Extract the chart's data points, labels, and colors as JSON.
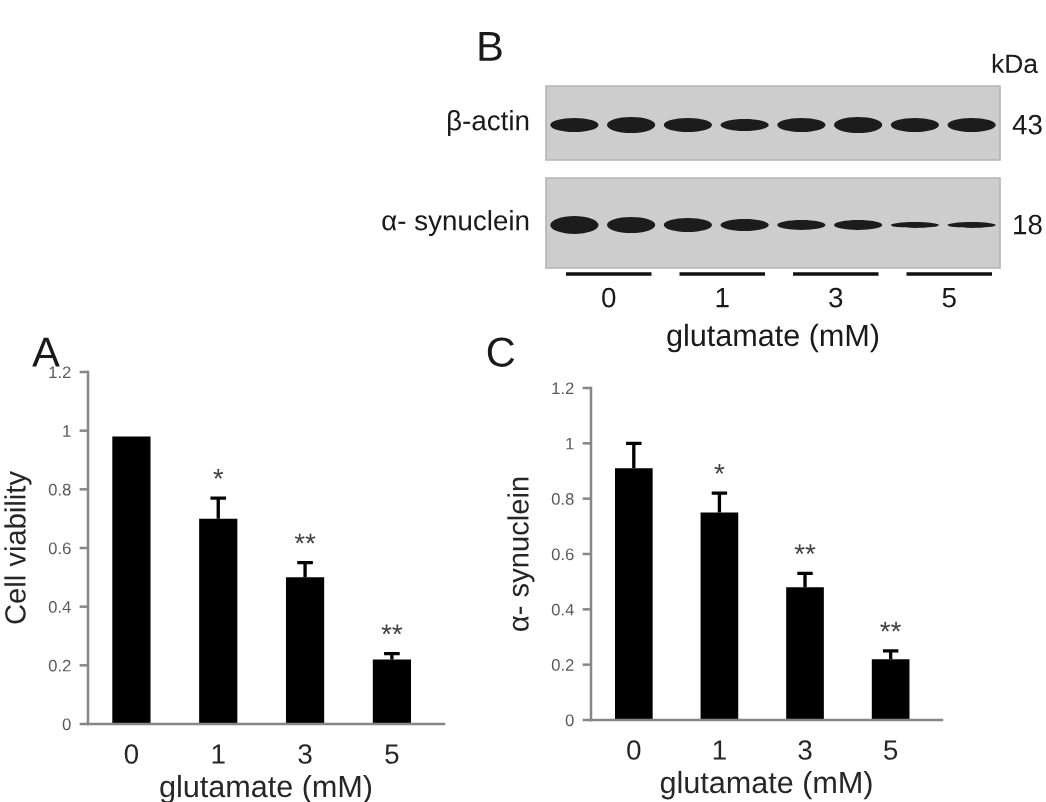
{
  "chart_data": [
    {
      "type": "other",
      "title": "B",
      "categories": [
        "0",
        "1",
        "3",
        "5"
      ],
      "xlabel": "glutamate (mM)",
      "y_categories": [
        "β-actin",
        "α- synuclein"
      ],
      "y2_categories": [
        "43",
        "18"
      ],
      "y2label": "kDa"
    },
    {
      "type": "bar",
      "title": "A",
      "categories": [
        "0",
        "1",
        "3",
        "5"
      ],
      "values": [
        0.98,
        0.7,
        0.5,
        0.22
      ],
      "errors": [
        null,
        [
          0.7,
          0.77
        ],
        [
          0.5,
          0.55
        ],
        [
          0.22,
          0.24
        ]
      ],
      "color": "#000000",
      "xlabel": "glutamate (mM)",
      "ylabel": "Cell viability",
      "ylim": [
        0,
        1.2
      ],
      "yticks": [
        0,
        0.2,
        0.4,
        0.6,
        0.8,
        1,
        1.2
      ],
      "annotations": [
        {
          "text": "*",
          "x": "1",
          "y": 0.77
        },
        {
          "text": "**",
          "x": "3",
          "y": 0.55
        },
        {
          "text": "**",
          "x": "5",
          "y": 0.24
        }
      ]
    },
    {
      "type": "bar",
      "title": "C",
      "categories": [
        "0",
        "1",
        "3",
        "5"
      ],
      "values": [
        0.91,
        0.75,
        0.48,
        0.22
      ],
      "errors": [
        [
          0.91,
          1.0
        ],
        [
          0.75,
          0.82
        ],
        [
          0.48,
          0.53
        ],
        [
          0.22,
          0.25
        ]
      ],
      "color": "#000000",
      "xlabel": "glutamate (mM)",
      "ylabel": "α- synuclein",
      "ylim": [
        0,
        1.2
      ],
      "yticks": [
        0,
        0.2,
        0.4,
        0.6,
        0.8,
        1,
        1.2
      ],
      "annotations": [
        {
          "text": "*",
          "x": "1",
          "y": 0.82
        },
        {
          "text": "**",
          "x": "3",
          "y": 0.53
        },
        {
          "text": "**",
          "x": "5",
          "y": 0.25
        }
      ]
    }
  ]
}
